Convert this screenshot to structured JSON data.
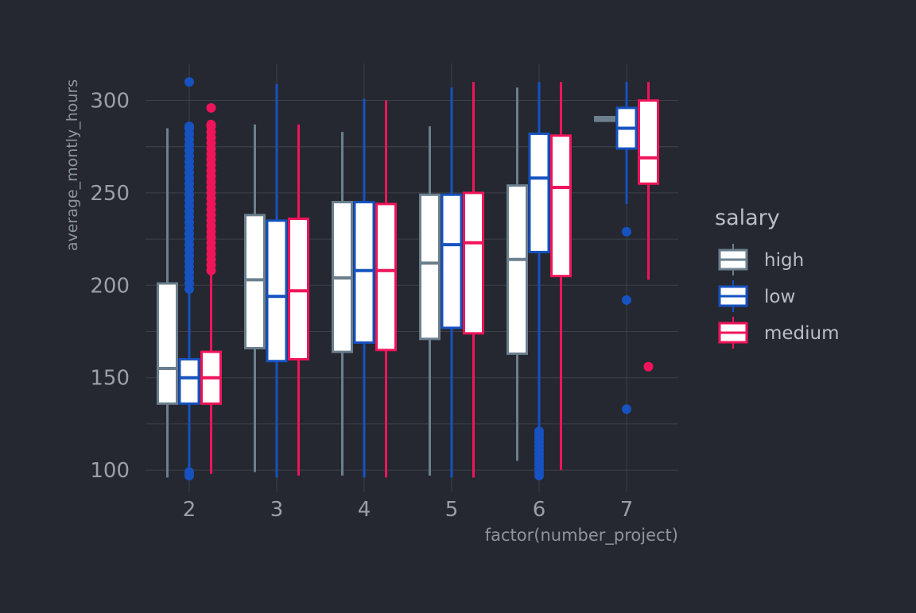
{
  "chart_data": {
    "type": "box",
    "title": "",
    "xlabel": "factor(number_project)",
    "ylabel": "average_montly_hours",
    "categories": [
      "2",
      "3",
      "4",
      "5",
      "6",
      "7"
    ],
    "ylim": [
      88,
      320
    ],
    "yticks": [
      100,
      150,
      200,
      250,
      300
    ],
    "grid": true,
    "legend": {
      "title": "salary",
      "position": "right"
    },
    "series": [
      {
        "name": "high",
        "color": "#6b7f8e",
        "boxes": [
          {
            "category": "2",
            "whisker_low": 96,
            "q1": 136,
            "median": 155,
            "q3": 201,
            "whisker_high": 285,
            "outliers": []
          },
          {
            "category": "3",
            "whisker_low": 99,
            "q1": 166,
            "median": 203,
            "q3": 238,
            "whisker_high": 287,
            "outliers": []
          },
          {
            "category": "4",
            "whisker_low": 97,
            "q1": 164,
            "median": 204,
            "q3": 245,
            "whisker_high": 283,
            "outliers": []
          },
          {
            "category": "5",
            "whisker_low": 97,
            "q1": 171,
            "median": 212,
            "q3": 249,
            "whisker_high": 286,
            "outliers": []
          },
          {
            "category": "6",
            "whisker_low": 105,
            "q1": 163,
            "median": 214,
            "q3": 254,
            "whisker_high": 307,
            "outliers": []
          },
          {
            "category": "7",
            "whisker_low": 289,
            "q1": 289,
            "median": 290,
            "q3": 291,
            "whisker_high": 291,
            "outliers": []
          }
        ]
      },
      {
        "name": "low",
        "color": "#1652c0",
        "boxes": [
          {
            "category": "2",
            "whisker_low": 97,
            "q1": 136,
            "median": 150,
            "q3": 160,
            "whisker_high": 196,
            "outliers": [
              99,
              97,
              198,
              201,
              204,
              207,
              210,
              213,
              216,
              219,
              222,
              225,
              228,
              231,
              234,
              237,
              240,
              243,
              246,
              249,
              252,
              255,
              258,
              261,
              264,
              267,
              270,
              273,
              276,
              279,
              282,
              285,
              286,
              310
            ]
          },
          {
            "category": "3",
            "whisker_low": 96,
            "q1": 159,
            "median": 194,
            "q3": 235,
            "whisker_high": 309,
            "outliers": []
          },
          {
            "category": "4",
            "whisker_low": 96,
            "q1": 169,
            "median": 208,
            "q3": 245,
            "whisker_high": 301,
            "outliers": []
          },
          {
            "category": "5",
            "whisker_low": 96,
            "q1": 177,
            "median": 222,
            "q3": 249,
            "whisker_high": 307,
            "outliers": []
          },
          {
            "category": "6",
            "whisker_low": 122,
            "q1": 218,
            "median": 258,
            "q3": 282,
            "whisker_high": 310,
            "outliers": [
              97,
              99,
              101,
              103,
              105,
              107,
              109,
              111,
              113,
              115,
              117,
              119,
              121
            ]
          },
          {
            "category": "7",
            "whisker_low": 244,
            "q1": 274,
            "median": 285,
            "q3": 296,
            "whisker_high": 310,
            "outliers": [
              229,
              192,
              133
            ]
          }
        ]
      },
      {
        "name": "medium",
        "color": "#f0145a",
        "boxes": [
          {
            "category": "2",
            "whisker_low": 98,
            "q1": 136,
            "median": 150,
            "q3": 164,
            "whisker_high": 206,
            "outliers": [
              208,
              211,
              214,
              217,
              220,
              223,
              226,
              229,
              232,
              235,
              238,
              241,
              244,
              247,
              250,
              253,
              256,
              259,
              262,
              265,
              268,
              271,
              274,
              277,
              280,
              283,
              286,
              287,
              296
            ]
          },
          {
            "category": "3",
            "whisker_low": 97,
            "q1": 160,
            "median": 197,
            "q3": 236,
            "whisker_high": 287,
            "outliers": []
          },
          {
            "category": "4",
            "whisker_low": 96,
            "q1": 165,
            "median": 208,
            "q3": 244,
            "whisker_high": 300,
            "outliers": []
          },
          {
            "category": "5",
            "whisker_low": 96,
            "q1": 174,
            "median": 223,
            "q3": 250,
            "whisker_high": 310,
            "outliers": []
          },
          {
            "category": "6",
            "whisker_low": 100,
            "q1": 205,
            "median": 253,
            "q3": 281,
            "whisker_high": 310,
            "outliers": []
          },
          {
            "category": "7",
            "whisker_low": 203,
            "q1": 255,
            "median": 269,
            "q3": 300,
            "whisker_high": 310,
            "outliers": [
              156
            ]
          }
        ]
      }
    ]
  },
  "colors": {
    "background": "#252830",
    "grid": "#3b4049",
    "tick_label": "#9aa0a8",
    "axis_title": "#8e949c",
    "legend_text": "#b8bec6",
    "box_fill": "#ffffff"
  }
}
